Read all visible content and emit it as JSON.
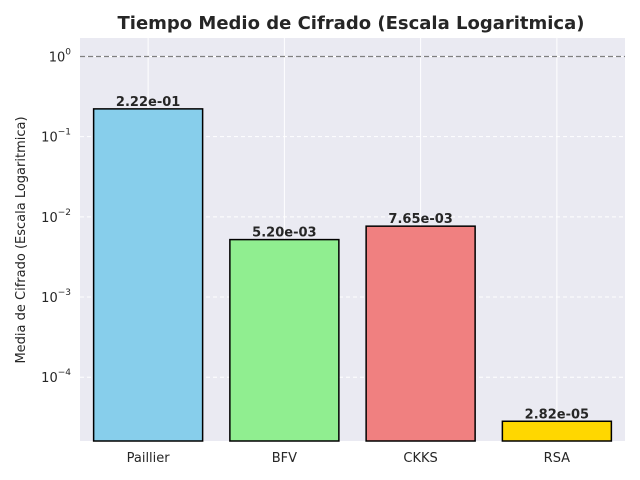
{
  "chart_data": {
    "type": "bar",
    "title": "Tiempo Medio de Cifrado (Escala Logaritmica)",
    "xlabel": "",
    "ylabel": "Media de Cifrado (Escala Logaritmica)",
    "yscale": "log",
    "ylim": [
      1.6e-05,
      1.7
    ],
    "categories": [
      "Paillier",
      "BFV",
      "CKKS",
      "RSA"
    ],
    "values": [
      0.222,
      0.0052,
      0.00765,
      2.82e-05
    ],
    "data_labels": [
      "2.22e-01",
      "5.20e-03",
      "7.65e-03",
      "2.82e-05"
    ],
    "colors": [
      "#87ceeb",
      "#90ee90",
      "#f08080",
      "#ffd700"
    ],
    "y_ticks": [
      {
        "value": 0.0001,
        "base": "10",
        "exp": "−4"
      },
      {
        "value": 0.001,
        "base": "10",
        "exp": "−3"
      },
      {
        "value": 0.01,
        "base": "10",
        "exp": "−2"
      },
      {
        "value": 0.1,
        "base": "10",
        "exp": "−1"
      },
      {
        "value": 1,
        "base": "10",
        "exp": "0"
      }
    ],
    "reference_line": {
      "value": 1,
      "color": "#808080",
      "style": "dashed"
    },
    "grid": true,
    "background": "#eaeaf2"
  }
}
